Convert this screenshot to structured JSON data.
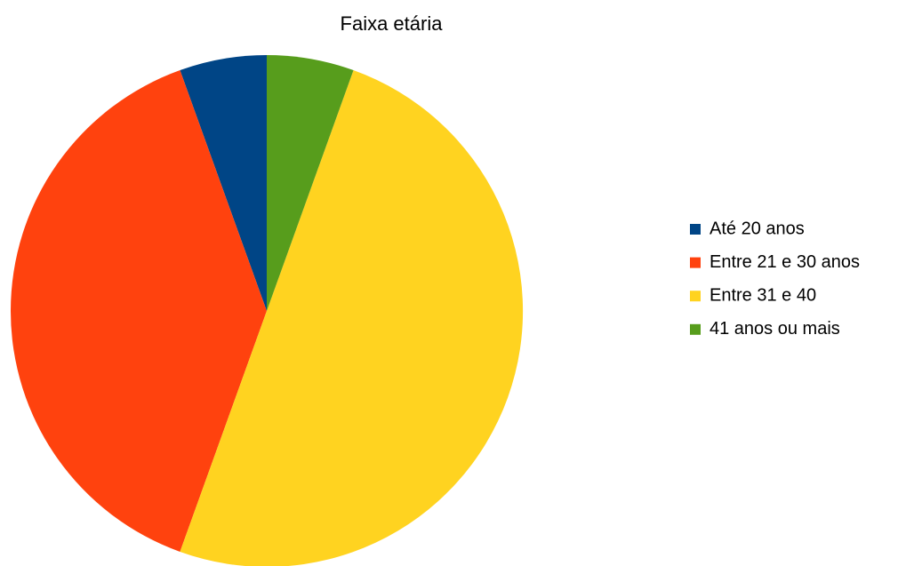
{
  "chart_data": {
    "type": "pie",
    "title": "Faixa etária",
    "categories": [
      "Até 20 anos",
      "Entre 21 e 30 anos",
      "Entre 31 e 40",
      "41 anos ou mais"
    ],
    "values": [
      5.5,
      39,
      50,
      5.5
    ],
    "colors": [
      "#004586",
      "#ff420e",
      "#ffd320",
      "#579d1c"
    ],
    "legend": "right"
  }
}
